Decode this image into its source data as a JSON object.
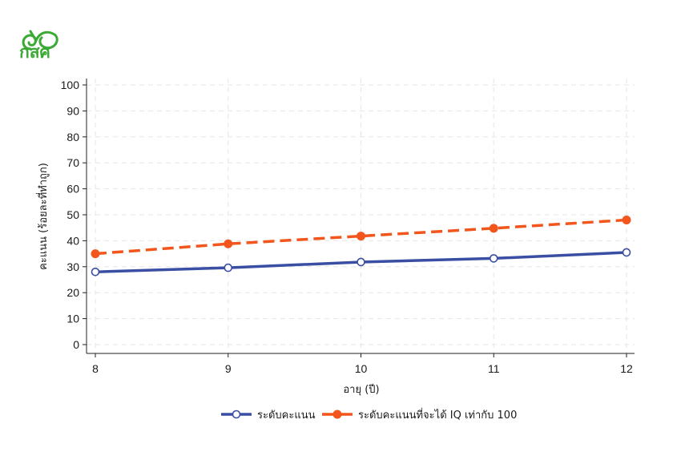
{
  "logo": {
    "text": "กสศ",
    "color": "#3aaa35"
  },
  "chart_data": {
    "type": "line",
    "x": [
      8,
      9,
      10,
      11,
      12
    ],
    "xlabel": "อายุ (ปี)",
    "ylabel": "คะแนน (ร้อยละที่ทำถูก)",
    "xlim": [
      8,
      12
    ],
    "ylim": [
      0,
      100
    ],
    "yticks": [
      0,
      10,
      20,
      30,
      40,
      50,
      60,
      70,
      80,
      90,
      100
    ],
    "grid": true,
    "legend_position": "bottom",
    "series": [
      {
        "name": "ระดับคะแนน",
        "values": [
          28,
          29.6,
          31.8,
          33.2,
          35.5
        ],
        "color": "#3a4fa3",
        "style": "solid",
        "marker": "hollow-circle"
      },
      {
        "name": "ระดับคะแนนที่จะได้ IQ เท่ากับ 100",
        "values": [
          35,
          38.8,
          41.8,
          44.8,
          48
        ],
        "color": "#f2561c",
        "style": "dashed",
        "marker": "filled-circle"
      }
    ]
  }
}
